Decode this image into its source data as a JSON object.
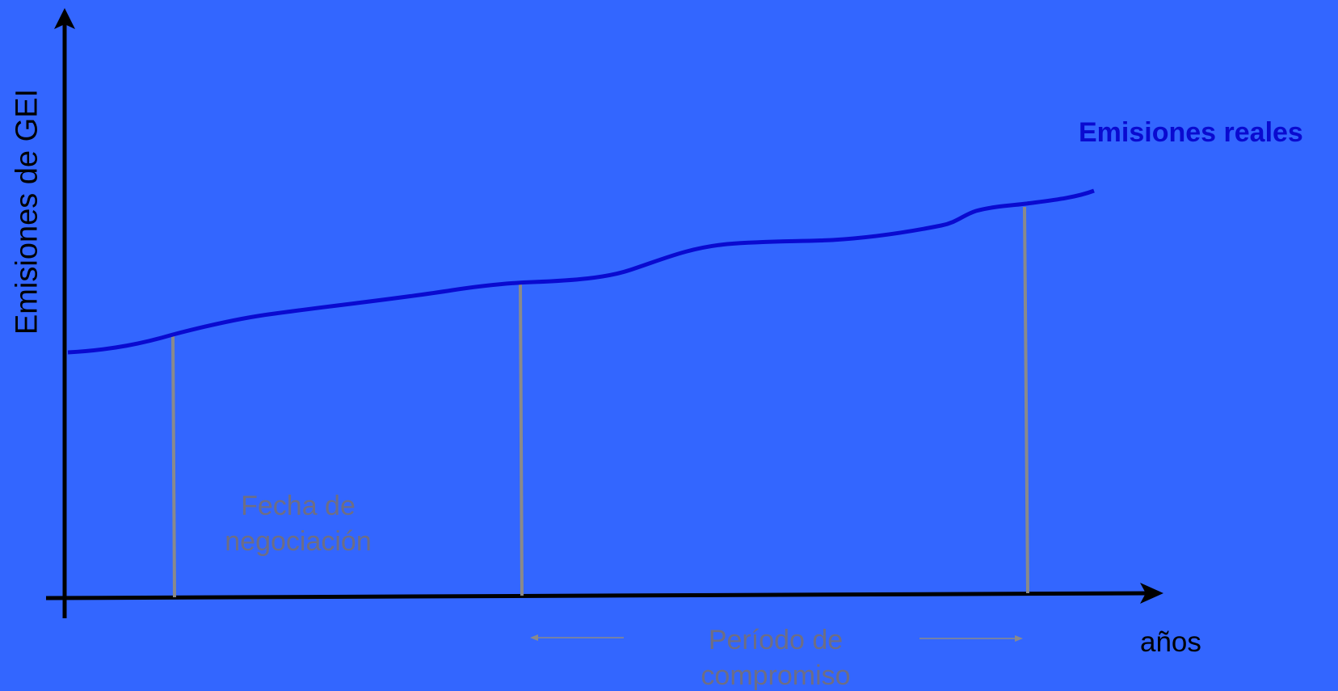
{
  "diagram": {
    "y_axis_label": "Emisiones de GEI",
    "x_axis_label": "años",
    "series_label": "Emisiones reales",
    "negotiation_label": [
      "Fecha de",
      "negociación"
    ],
    "commitment_label": [
      "Período de",
      "compromiso"
    ]
  },
  "colors": {
    "background": "#3366ff",
    "axes": "#000000",
    "emissions_line": "#0a0ad0",
    "markers": "#8a8a8a",
    "annotation_text": "#6e6e84"
  }
}
